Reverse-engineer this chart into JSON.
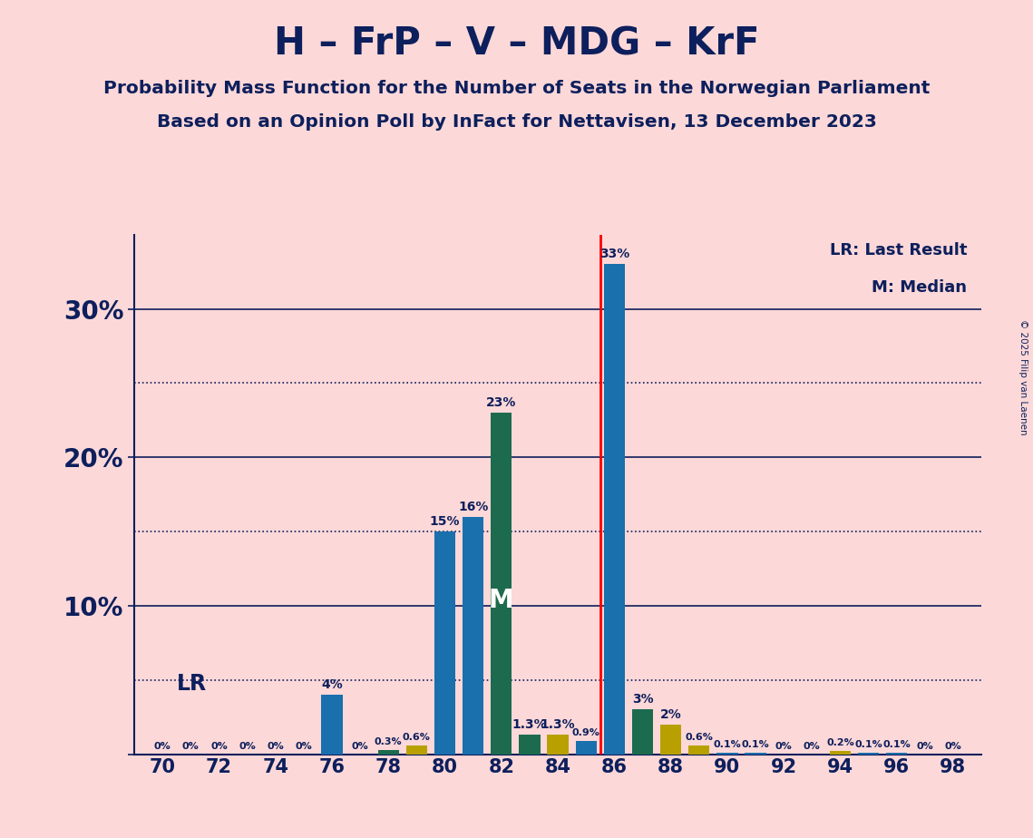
{
  "title": "H – FrP – V – MDG – KrF",
  "subtitle1": "Probability Mass Function for the Number of Seats in the Norwegian Parliament",
  "subtitle2": "Based on an Opinion Poll by InFact for Nettavisen, 13 December 2023",
  "copyright": "© 2025 Filip van Laenen",
  "background_color": "#fcd8d8",
  "text_color": "#0d1f5c",
  "bar_color_blue": "#1a6fad",
  "bar_color_green": "#1d6b4e",
  "bar_color_yellow": "#b8a000",
  "seats": [
    70,
    71,
    72,
    73,
    74,
    75,
    76,
    77,
    78,
    79,
    80,
    81,
    82,
    83,
    84,
    85,
    86,
    87,
    88,
    89,
    90,
    91,
    92,
    93,
    94,
    95,
    96,
    97,
    98
  ],
  "probs": [
    0.0,
    0.0,
    0.0,
    0.0,
    0.0,
    0.0,
    4.0,
    0.0,
    0.3,
    0.6,
    15.0,
    16.0,
    23.0,
    1.3,
    1.3,
    0.9,
    33.0,
    3.0,
    2.0,
    0.6,
    0.1,
    0.1,
    0.0,
    0.0,
    0.2,
    0.1,
    0.1,
    0.0,
    0.0
  ],
  "bar_colors": [
    "B",
    "B",
    "B",
    "B",
    "B",
    "B",
    "B",
    "B",
    "G",
    "Y",
    "B",
    "B",
    "G",
    "G",
    "Y",
    "B",
    "B",
    "G",
    "Y",
    "Y",
    "B",
    "B",
    "B",
    "B",
    "Y",
    "B",
    "B",
    "B",
    "B"
  ],
  "lr_x": 85.5,
  "median_seat": 82,
  "xlim": [
    69,
    99
  ],
  "ylim": [
    0,
    35
  ],
  "yticks": [
    0,
    10,
    20,
    30
  ],
  "ytick_labels": [
    "",
    "10%",
    "20%",
    "30%"
  ],
  "dotted_lines": [
    5,
    15,
    25
  ],
  "solid_lines": [
    10,
    20,
    30
  ],
  "lr_legend": "LR: Last Result",
  "median_legend": "M: Median",
  "lr_label": "LR",
  "median_label": "M"
}
